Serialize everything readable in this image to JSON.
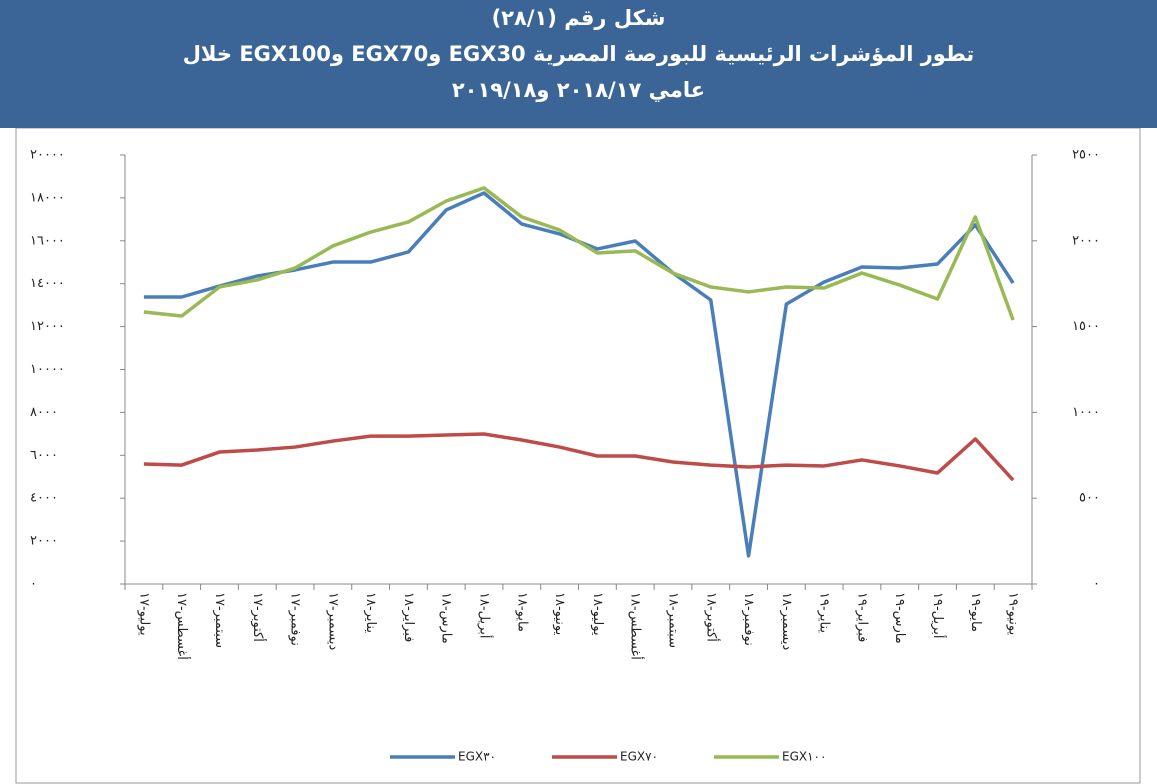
{
  "chart_data": {
    "type": "line",
    "title": [
      "شكل رقم (٢٨/١)",
      "تطور المؤشرات الرئيسية للبورصة المصرية EGX30 وEGX70 وEGX100 خلال",
      "عامي ٢٠١٨/١٧ و٢٠١٩/١٨"
    ],
    "categories": [
      "يوليو-١٧",
      "أغسطس-١٧",
      "سبتمبر-١٧",
      "أكتوبر-١٧",
      "نوفمبر-١٧",
      "ديسمبر-١٧",
      "يناير-١٨",
      "فبراير-١٨",
      "مارس-١٨",
      "أبريل-١٨",
      "مايو-١٨",
      "يونيو-١٨",
      "يوليو-١٨",
      "أغسطس-١٨",
      "سبتمبر-١٨",
      "أكتوبر-١٨",
      "نوفمبر-١٨",
      "ديسمبر-١٨",
      "يناير-١٩",
      "فبراير-١٩",
      "مارس-١٩",
      "أبريل-١٩",
      "مايو-١٩",
      "يونيو-١٩"
    ],
    "series": [
      {
        "name": "EGX٣٠",
        "color": "#4a7ebb",
        "axis": "y",
        "values": [
          13380,
          13380,
          13890,
          14360,
          14640,
          15010,
          15010,
          15480,
          17440,
          18230,
          16780,
          16320,
          15620,
          15990,
          14500,
          13240,
          1310,
          13050,
          14080,
          14780,
          14730,
          14920,
          16740,
          14030
        ]
      },
      {
        "name": "EGX٧٠",
        "color": "#be4b48",
        "axis": "y2",
        "values": [
          699,
          693,
          769,
          781,
          798,
          833,
          862,
          862,
          868,
          874,
          839,
          798,
          746,
          746,
          711,
          693,
          682,
          693,
          688,
          723,
          688,
          647,
          845,
          606
        ]
      },
      {
        "name": "EGX١٠٠",
        "color": "#98b954",
        "axis": "y2",
        "values": [
          1585,
          1562,
          1731,
          1772,
          1841,
          1970,
          2051,
          2110,
          2232,
          2308,
          2139,
          2063,
          1929,
          1941,
          1812,
          1731,
          1702,
          1731,
          1725,
          1812,
          1742,
          1661,
          2139,
          1538
        ]
      }
    ],
    "ylim": [
      0,
      20000
    ],
    "yticks": [
      {
        "value": 0,
        "label": "٠"
      },
      {
        "value": 2000,
        "label": "٢٠٠٠"
      },
      {
        "value": 4000,
        "label": "٤٠٠٠"
      },
      {
        "value": 6000,
        "label": "٦٠٠٠"
      },
      {
        "value": 8000,
        "label": "٨٠٠٠"
      },
      {
        "value": 10000,
        "label": "١٠٠٠٠"
      },
      {
        "value": 12000,
        "label": "١٢٠٠٠"
      },
      {
        "value": 14000,
        "label": "١٤٠٠٠"
      },
      {
        "value": 16000,
        "label": "١٦٠٠٠"
      },
      {
        "value": 18000,
        "label": "١٨٠٠٠"
      },
      {
        "value": 20000,
        "label": "٢٠٠٠٠"
      }
    ],
    "y2lim": [
      0,
      2500
    ],
    "y2ticks": [
      {
        "value": 0,
        "label": "٠"
      },
      {
        "value": 500,
        "label": "٥٠٠"
      },
      {
        "value": 1000,
        "label": "١٠٠٠"
      },
      {
        "value": 1500,
        "label": "١٥٠٠"
      },
      {
        "value": 2000,
        "label": "٢٠٠٠"
      },
      {
        "value": 2500,
        "label": "٢٥٠٠"
      }
    ],
    "grid": false,
    "legend": "bottom"
  }
}
